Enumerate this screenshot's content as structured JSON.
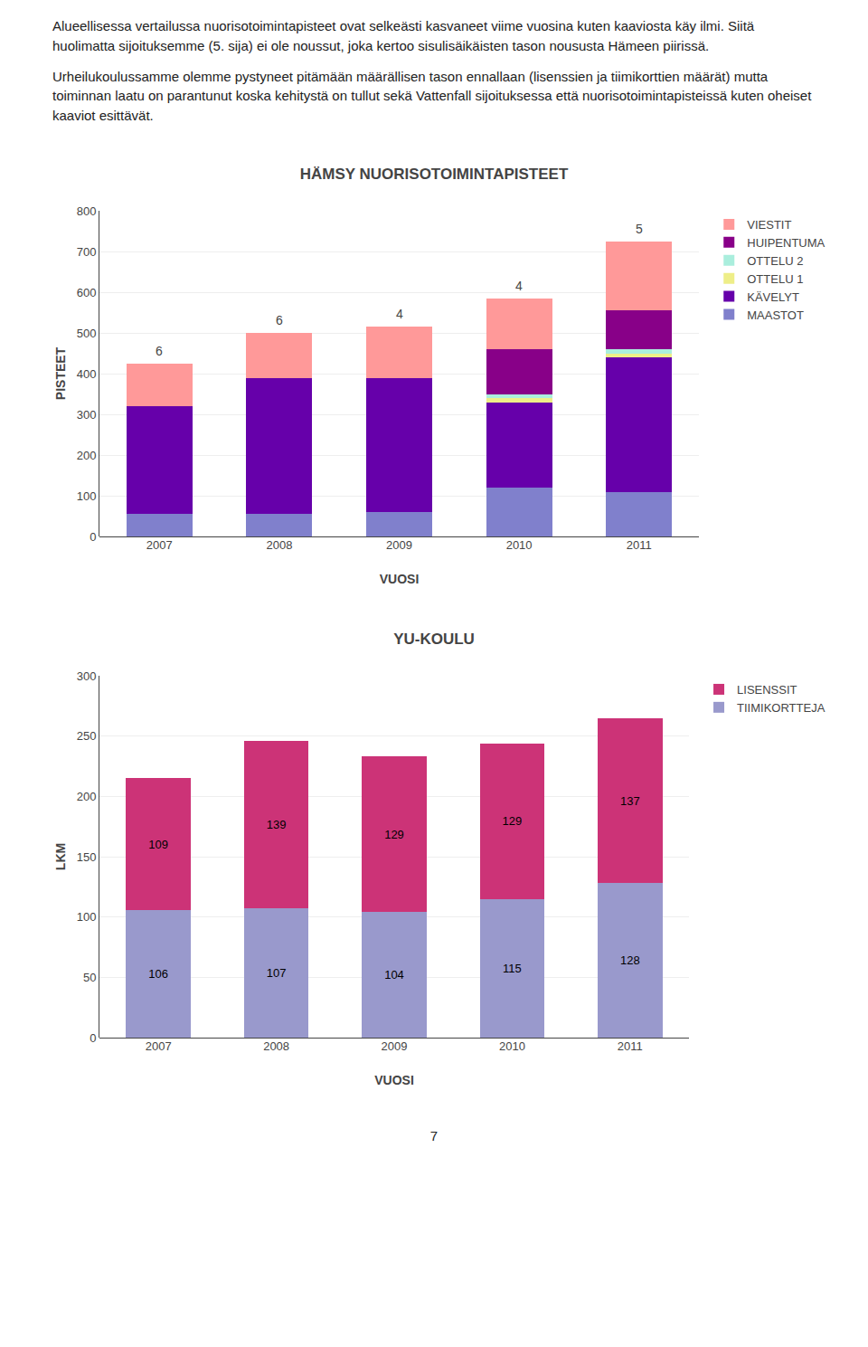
{
  "paragraphs": [
    "Alueellisessa vertailussa nuorisotoimintapisteet ovat selkeästi kasvaneet viime vuosina kuten kaaviosta käy ilmi. Siitä huolimatta sijoituksemme (5. sija) ei ole noussut, joka kertoo sisulisäikäisten tason noususta Hämeen piirissä.",
    "Urheilukoulussamme olemme pystyneet pitämään määrällisen tason ennallaan (lisenssien ja tiimikorttien määrät) mutta toiminnan laatu on parantunut koska kehitystä on tullut sekä Vattenfall sijoituksessa että nuorisotoimintapisteissä kuten oheiset kaaviot esittävät."
  ],
  "page_number": "7",
  "chart_data": [
    {
      "type": "bar",
      "stacked": true,
      "title": "HÄMSY NUORISOTOIMINTAPISTEET",
      "xlabel": "VUOSI",
      "ylabel": "PISTEET",
      "categories": [
        "2007",
        "2008",
        "2009",
        "2010",
        "2011"
      ],
      "series": [
        {
          "name": "MAASTOT",
          "color": "#8080cc",
          "values": [
            55,
            55,
            60,
            120,
            110
          ]
        },
        {
          "name": "KÄVELYT",
          "color": "#6600aa",
          "values": [
            265,
            335,
            330,
            210,
            330
          ]
        },
        {
          "name": "OTTELU 1",
          "color": "#eeee88",
          "values": [
            0,
            0,
            0,
            10,
            10
          ]
        },
        {
          "name": "OTTELU 2",
          "color": "#aaeedd",
          "values": [
            0,
            0,
            0,
            10,
            10
          ]
        },
        {
          "name": "HUIPENTUMA",
          "color": "#880088",
          "values": [
            0,
            0,
            0,
            110,
            95
          ]
        },
        {
          "name": "VIESTIT",
          "color": "#ff9999",
          "values": [
            105,
            110,
            125,
            125,
            170
          ]
        }
      ],
      "annotations": [
        {
          "category": "2007",
          "text": "6"
        },
        {
          "category": "2008",
          "text": "6"
        },
        {
          "category": "2009",
          "text": "4"
        },
        {
          "category": "2010",
          "text": "4"
        },
        {
          "category": "2011",
          "text": "5"
        }
      ],
      "ylim": [
        0,
        800
      ],
      "yticks": [
        0,
        100,
        200,
        300,
        400,
        500,
        600,
        700,
        800
      ],
      "grid": true,
      "legend": "upper right"
    },
    {
      "type": "bar",
      "stacked": true,
      "title": "YU-KOULU",
      "xlabel": "VUOSI",
      "ylabel": "LKM",
      "categories": [
        "2007",
        "2008",
        "2009",
        "2010",
        "2011"
      ],
      "series": [
        {
          "name": "TIIMIKORTTEJA",
          "color": "#9999cc",
          "values": [
            106,
            107,
            104,
            115,
            128
          ]
        },
        {
          "name": "LISENSSIT",
          "color": "#cc3377",
          "values": [
            109,
            139,
            129,
            129,
            137
          ]
        }
      ],
      "data_labels": true,
      "ylim": [
        0,
        300
      ],
      "yticks": [
        0,
        50,
        100,
        150,
        200,
        250,
        300
      ],
      "grid": true,
      "legend": "upper right"
    }
  ]
}
